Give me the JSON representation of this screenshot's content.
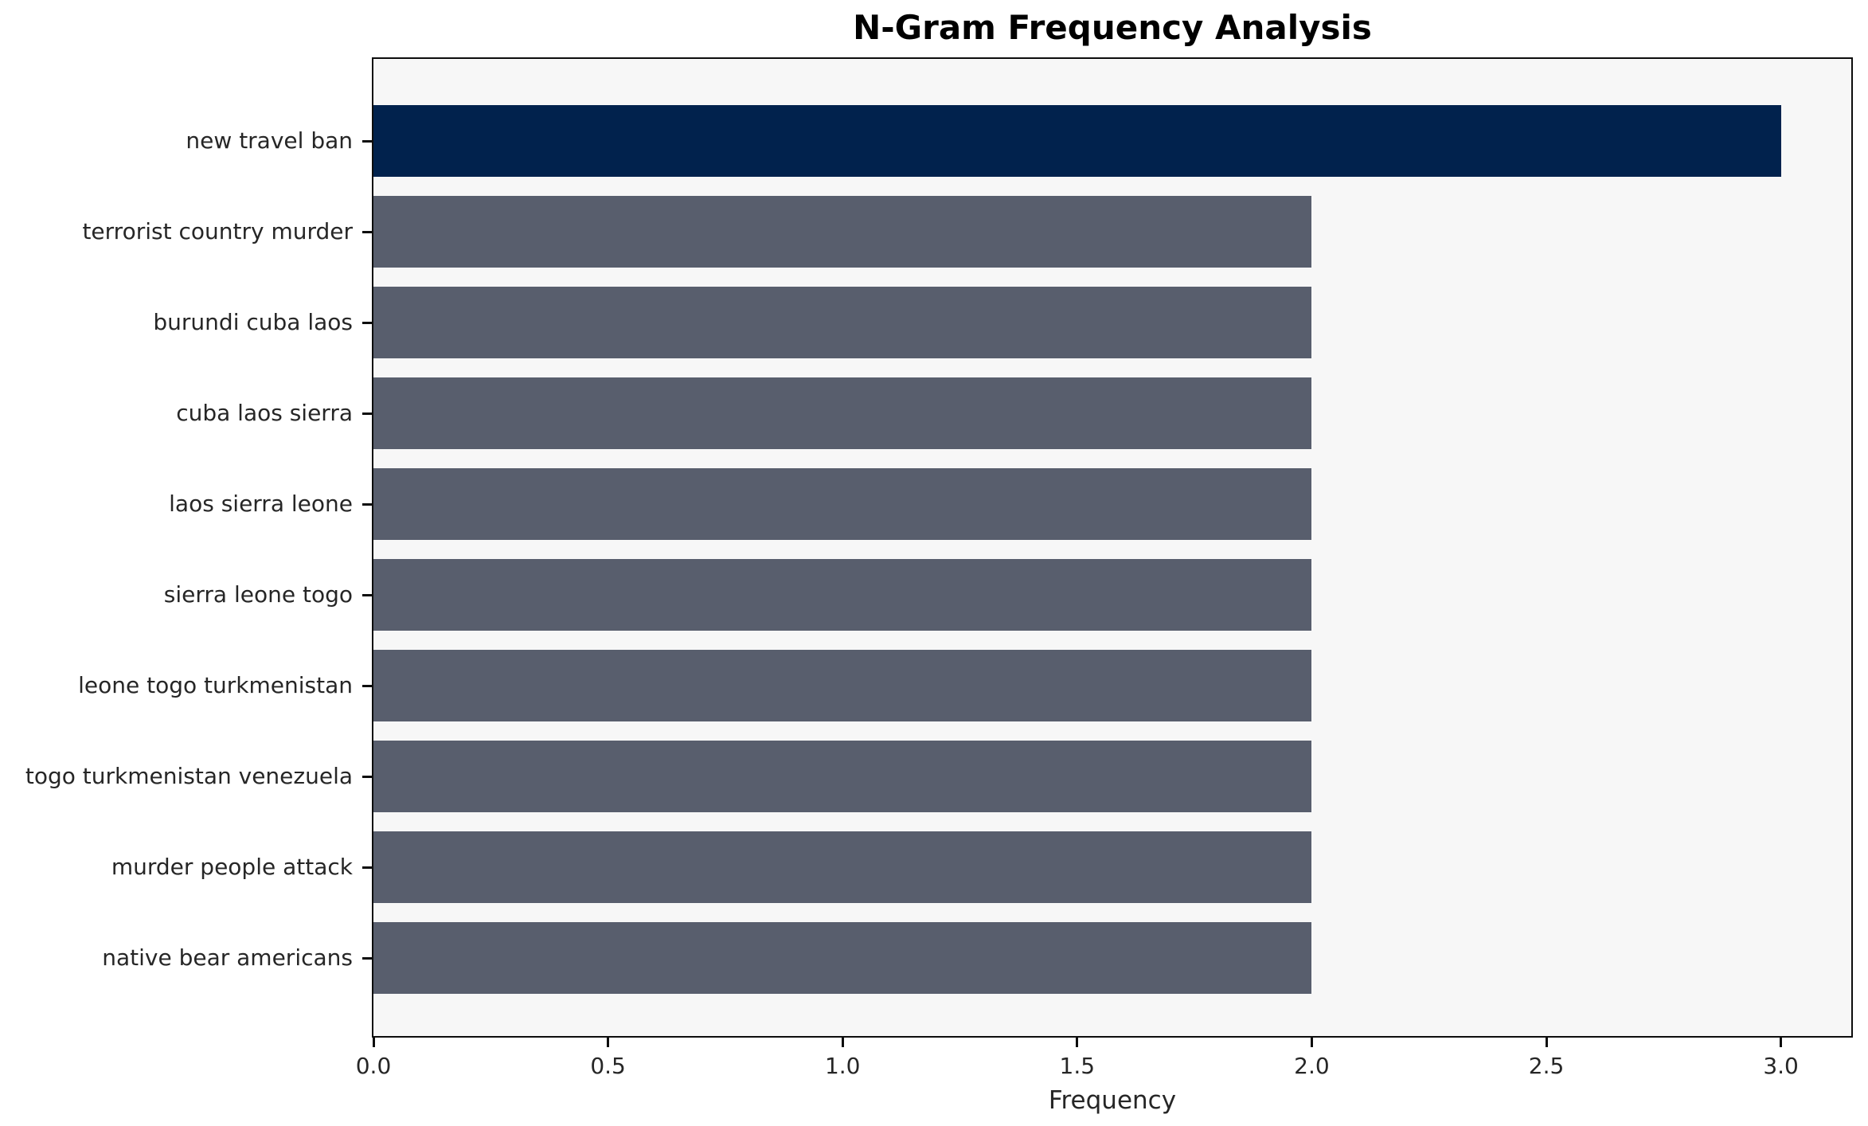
{
  "chart_data": {
    "type": "bar",
    "orientation": "horizontal",
    "title": "N-Gram Frequency Analysis",
    "xlabel": "Frequency",
    "ylabel": "",
    "categories": [
      "new travel ban",
      "terrorist country murder",
      "burundi cuba laos",
      "cuba laos sierra",
      "laos sierra leone",
      "sierra leone togo",
      "leone togo turkmenistan",
      "togo turkmenistan venezuela",
      "murder people attack",
      "native bear americans"
    ],
    "values": [
      3,
      2,
      2,
      2,
      2,
      2,
      2,
      2,
      2,
      2
    ],
    "bar_colors": [
      "#01224d",
      "#585e6d",
      "#585e6d",
      "#585e6d",
      "#585e6d",
      "#585e6d",
      "#585e6d",
      "#585e6d",
      "#585e6d",
      "#585e6d"
    ],
    "xticks": [
      0.0,
      0.5,
      1.0,
      1.5,
      2.0,
      2.5,
      3.0
    ],
    "xtick_labels": [
      "0.0",
      "0.5",
      "1.0",
      "1.5",
      "2.0",
      "2.5",
      "3.0"
    ],
    "xlim": [
      0,
      3.15
    ],
    "grid": false,
    "legend": null,
    "colors": {
      "highlight": "#01224d",
      "default_bar": "#585e6d",
      "plot_background": "#f7f7f7",
      "figure_background": "#ffffff",
      "axis": "#0d0d0d",
      "text": "#262626"
    }
  }
}
